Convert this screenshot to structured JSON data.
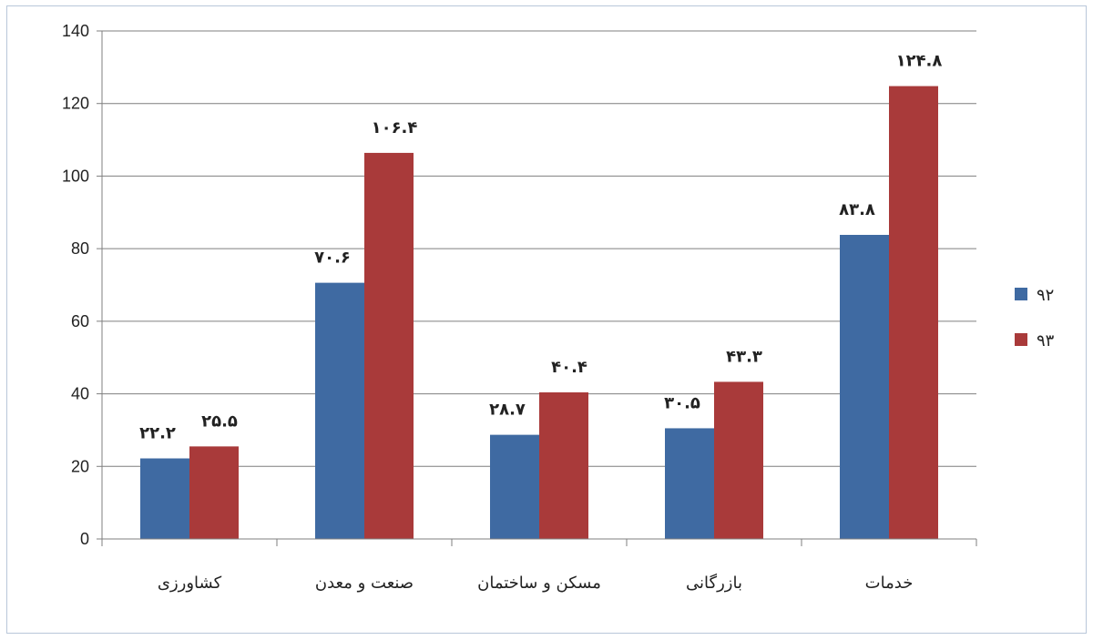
{
  "chart_data": {
    "type": "bar",
    "title": "",
    "xlabel": "",
    "ylabel": "",
    "categories": [
      "کشاورزی",
      "صنعت و معدن",
      "مسکن و ساختمان",
      "بازرگانی",
      "خدمات"
    ],
    "series": [
      {
        "name": "۹۲",
        "color": "#3f6aa2",
        "values": [
          22.2,
          70.6,
          28.7,
          30.5,
          83.8
        ],
        "labels": [
          "۲۲.۲",
          "۷۰.۶",
          "۲۸.۷",
          "۳۰.۵",
          "۸۳.۸"
        ]
      },
      {
        "name": "۹۳",
        "color": "#a93a3a",
        "values": [
          25.5,
          106.4,
          40.4,
          43.3,
          124.8
        ],
        "labels": [
          "۲۵.۵",
          "۱۰۶.۴",
          "۴۰.۴",
          "۴۳.۳",
          "۱۲۴.۸"
        ]
      }
    ],
    "ylim": [
      0,
      140
    ],
    "yticks": [
      0,
      20,
      40,
      60,
      80,
      100,
      120,
      140
    ],
    "grid": true,
    "legend": "right"
  }
}
